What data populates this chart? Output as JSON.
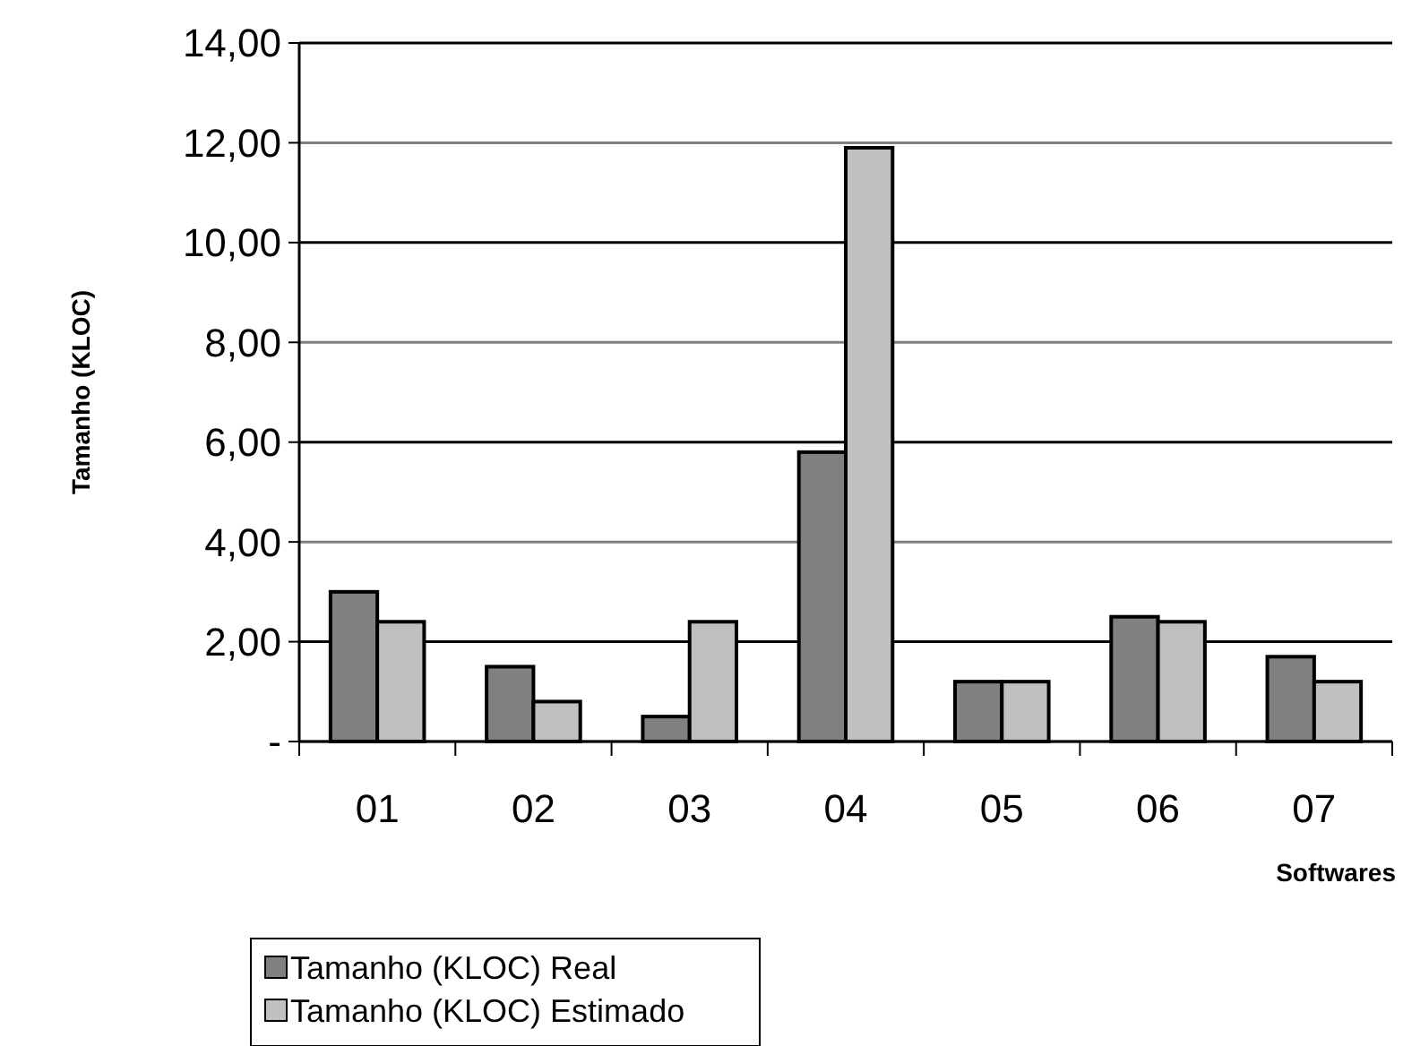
{
  "chart_data": {
    "type": "bar",
    "xlabel": "Softwares",
    "ylabel": "Tamanho (KLOC)",
    "categories": [
      "01",
      "02",
      "03",
      "04",
      "05",
      "06",
      "07"
    ],
    "series": [
      {
        "name": "Tamanho (KLOC) Real",
        "color": "#808080",
        "values": [
          3.0,
          1.5,
          0.5,
          5.8,
          1.2,
          2.5,
          1.7
        ]
      },
      {
        "name": "Tamanho (KLOC) Estimado",
        "color": "#c0c0c0",
        "values": [
          2.4,
          0.8,
          2.4,
          11.9,
          1.2,
          2.4,
          1.2
        ]
      }
    ],
    "ylim": [
      0,
      14
    ],
    "yticks": [
      {
        "value": 0,
        "label": "-"
      },
      {
        "value": 2,
        "label": "2,00"
      },
      {
        "value": 4,
        "label": "4,00"
      },
      {
        "value": 6,
        "label": "6,00"
      },
      {
        "value": 8,
        "label": "8,00"
      },
      {
        "value": 10,
        "label": "10,00"
      },
      {
        "value": 12,
        "label": "12,00"
      },
      {
        "value": 14,
        "label": "14,00"
      }
    ],
    "grid": "y",
    "legend": "bottom"
  }
}
